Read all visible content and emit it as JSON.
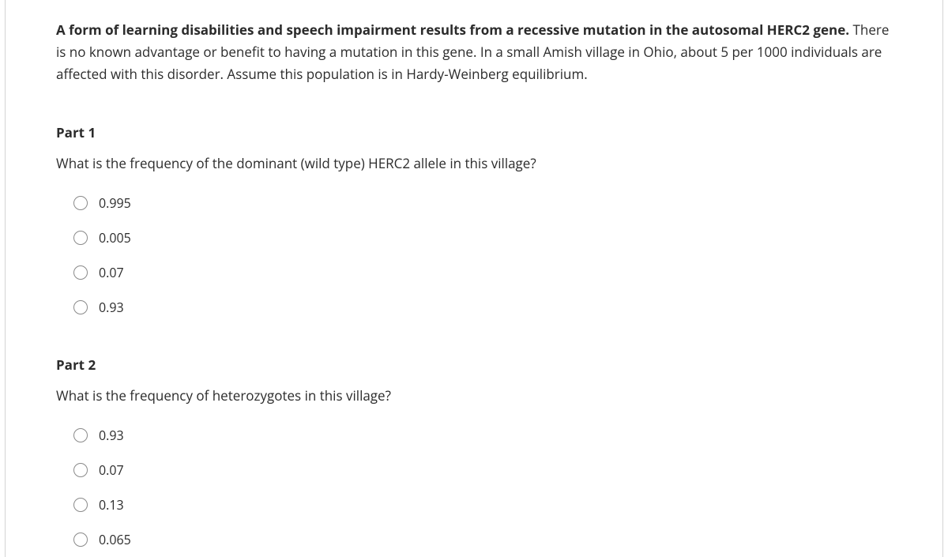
{
  "intro": {
    "bold_text": "A form of learning disabilities and speech impairment results from a recessive mutation in the autosomal HERC2 gene.",
    "rest_text": " There is no known advantage or benefit to having a mutation in this gene. In a small Amish village in Ohio, about 5 per 1000 individuals are affected with this disorder.  Assume this population is in Hardy-Weinberg equilibrium."
  },
  "parts": [
    {
      "title": "Part 1",
      "question": "What is the frequency of the dominant (wild type) HERC2 allele in this village?",
      "options": [
        "0.995",
        "0.005",
        "0.07",
        "0.93"
      ]
    },
    {
      "title": "Part 2",
      "question": "What is the frequency of heterozygotes in this village?",
      "options": [
        "0.93",
        "0.07",
        "0.13",
        "0.065"
      ]
    }
  ],
  "colors": {
    "text": "#2b2b2b",
    "border": "#d4d4d4",
    "radio_border": "#8a8a8a",
    "background": "#ffffff"
  },
  "typography": {
    "body_fontsize": 17,
    "option_fontsize": 16,
    "line_height": 1.65
  }
}
